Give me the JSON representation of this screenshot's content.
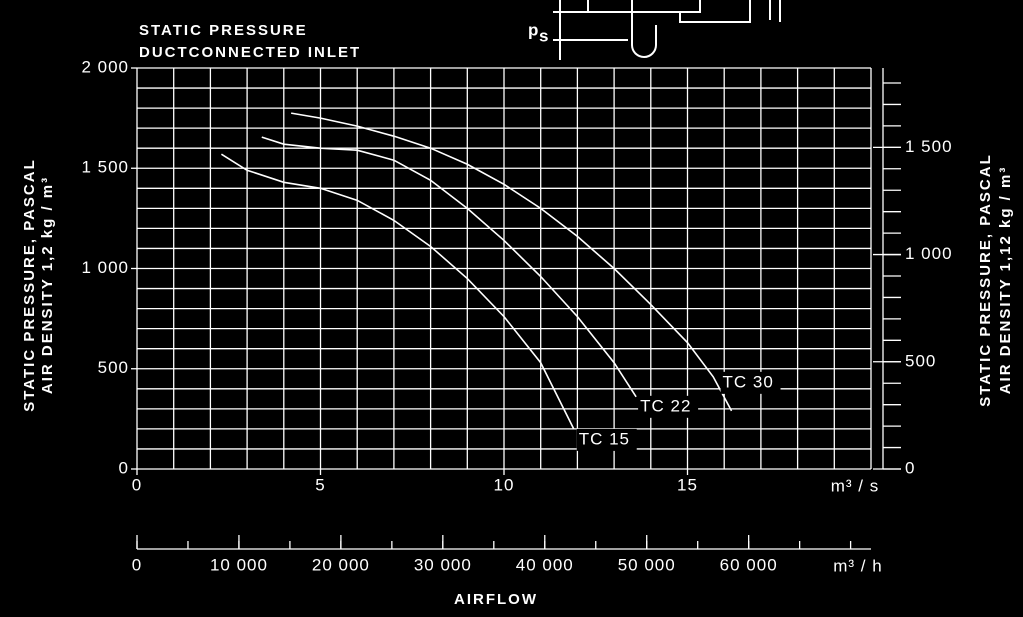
{
  "chart_data": {
    "type": "line",
    "title": "STATIC PRESSURE",
    "subtitle": "DUCTCONNECTED INLET",
    "symbol": "p",
    "symbol_subscript": "s",
    "y_label": "STATIC PRESSURE, PASCAL",
    "y_label_density": "AIR DENSITY   1,2 kg / m³",
    "y2_label": "STATIC PRESSURE, PASCAL",
    "y2_label_density": "AIR DENSITY   1,12 kg / m³",
    "x_unit": "m³ / s",
    "x2_unit": "m³ / h",
    "x_label": "AIRFLOW",
    "xlim": [
      0,
      20
    ],
    "xticks": [
      0,
      5,
      10,
      15
    ],
    "xminor": [
      0,
      1,
      2,
      3,
      4,
      5,
      6,
      7,
      8,
      9,
      10,
      11,
      12,
      13,
      14,
      15,
      16,
      17,
      18,
      19,
      20
    ],
    "ylim": [
      0,
      2000
    ],
    "yticks": [
      0,
      500,
      {
        "value": 1000,
        "label": "1 000"
      },
      {
        "value": 1500,
        "label": "1 500"
      },
      {
        "value": 2000,
        "label": "2 000"
      }
    ],
    "yminor": [
      0,
      100,
      200,
      300,
      400,
      500,
      600,
      700,
      800,
      900,
      1000,
      1100,
      1200,
      1300,
      1400,
      1500,
      1600,
      1700,
      1800,
      1900,
      2000
    ],
    "y2lim": [
      0,
      1870
    ],
    "y2ticks": [
      0,
      500,
      {
        "value": 1000,
        "label": "1 000"
      },
      {
        "value": 1500,
        "label": "1 500"
      }
    ],
    "y2minor": [
      0,
      100,
      200,
      300,
      400,
      500,
      600,
      700,
      800,
      900,
      1000,
      1100,
      1200,
      1300,
      1400,
      1500,
      1600,
      1700,
      1800
    ],
    "x2lim": [
      0,
      72000
    ],
    "x2ticks": [
      0,
      {
        "value": 10000,
        "label": "10 000"
      },
      {
        "value": 20000,
        "label": "20 000"
      },
      {
        "value": 30000,
        "label": "30 000"
      },
      {
        "value": 40000,
        "label": "40 000"
      },
      {
        "value": 50000,
        "label": "50 000"
      },
      {
        "value": 60000,
        "label": "60 000"
      }
    ],
    "x2minor": [
      0,
      5000,
      10000,
      15000,
      20000,
      25000,
      30000,
      35000,
      40000,
      45000,
      50000,
      55000,
      60000,
      65000,
      70000
    ],
    "grid": true,
    "series": [
      {
        "name": "TC 15",
        "color": "#ffffff",
        "x": [
          2.3,
          3,
          4,
          5,
          6,
          7,
          8,
          9,
          10,
          11,
          11.9
        ],
        "values": [
          1570,
          1490,
          1430,
          1400,
          1340,
          1240,
          1110,
          950,
          760,
          530,
          200
        ]
      },
      {
        "name": "TC 22",
        "color": "#ffffff",
        "x": [
          3.4,
          4,
          5,
          6,
          7,
          8,
          9,
          10,
          11,
          12,
          13,
          13.6
        ],
        "values": [
          1655,
          1620,
          1600,
          1590,
          1540,
          1440,
          1300,
          1140,
          960,
          760,
          530,
          360
        ]
      },
      {
        "name": "TC 30",
        "color": "#ffffff",
        "x": [
          4.2,
          5,
          6,
          7,
          8,
          9,
          10,
          11,
          12,
          13,
          14,
          15,
          15.7,
          16.2
        ],
        "values": [
          1775,
          1750,
          1710,
          1660,
          1600,
          1520,
          1420,
          1300,
          1160,
          1000,
          820,
          630,
          460,
          290
        ]
      }
    ]
  }
}
